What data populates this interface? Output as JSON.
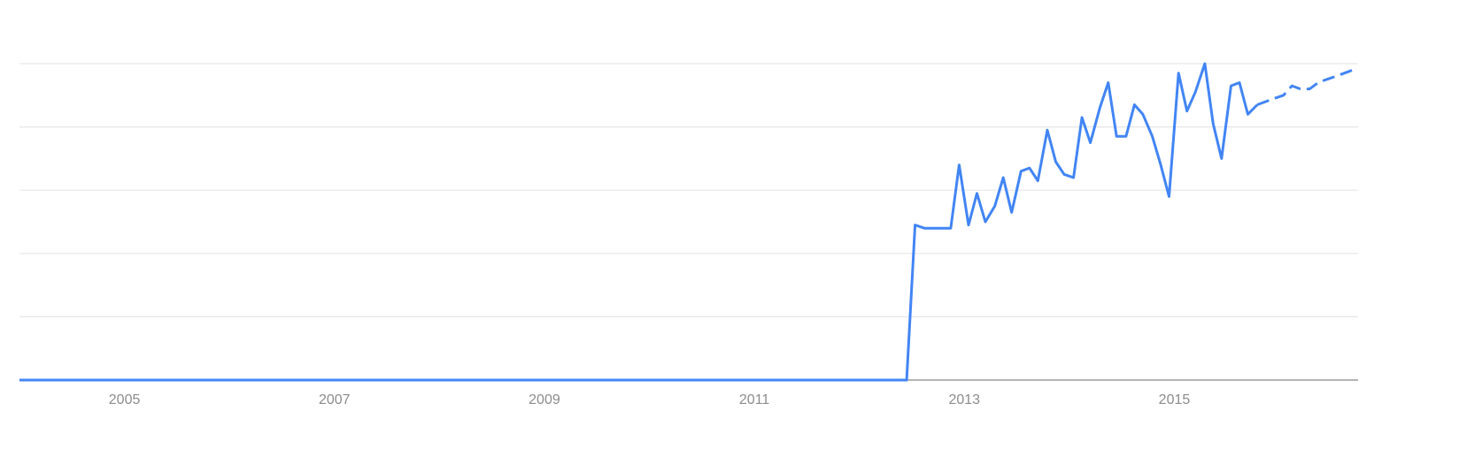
{
  "chart_data": {
    "type": "line",
    "title": "",
    "xlabel": "",
    "ylabel": "",
    "x_range": [
      2004.0,
      2016.75
    ],
    "ylim": [
      0,
      100
    ],
    "y_gridlines": [
      20,
      40,
      60,
      80,
      100
    ],
    "x_ticks": [
      {
        "value": 2005,
        "label": "2005"
      },
      {
        "value": 2007,
        "label": "2007"
      },
      {
        "value": 2009,
        "label": "2009"
      },
      {
        "value": 2011,
        "label": "2011"
      },
      {
        "value": 2013,
        "label": "2013"
      },
      {
        "value": 2015,
        "label": "2015"
      }
    ],
    "colors": {
      "line": "#4285f4",
      "grid": "#e6e6e6",
      "axis": "#888888",
      "tick_label": "#8c8c8c"
    },
    "series": [
      {
        "style": "solid",
        "points": [
          [
            2004.0,
            0
          ],
          [
            2012.45,
            0
          ],
          [
            2012.53,
            49
          ],
          [
            2012.62,
            48
          ],
          [
            2012.7,
            48
          ],
          [
            2012.79,
            48
          ],
          [
            2012.87,
            48
          ],
          [
            2012.95,
            68
          ],
          [
            2013.04,
            49
          ],
          [
            2013.12,
            59
          ],
          [
            2013.2,
            50
          ],
          [
            2013.29,
            55
          ],
          [
            2013.37,
            64
          ],
          [
            2013.45,
            53
          ],
          [
            2013.54,
            66
          ],
          [
            2013.62,
            67
          ],
          [
            2013.7,
            63
          ],
          [
            2013.79,
            79
          ],
          [
            2013.87,
            69
          ],
          [
            2013.95,
            65
          ],
          [
            2014.04,
            64
          ],
          [
            2014.12,
            83
          ],
          [
            2014.2,
            75
          ],
          [
            2014.29,
            86
          ],
          [
            2014.37,
            94
          ],
          [
            2014.45,
            77
          ],
          [
            2014.54,
            77
          ],
          [
            2014.62,
            87
          ],
          [
            2014.7,
            84
          ],
          [
            2014.79,
            77
          ],
          [
            2014.87,
            68
          ],
          [
            2014.95,
            58
          ],
          [
            2015.04,
            97
          ],
          [
            2015.12,
            85
          ],
          [
            2015.2,
            91
          ],
          [
            2015.29,
            100
          ],
          [
            2015.37,
            81
          ],
          [
            2015.45,
            70
          ],
          [
            2015.54,
            93
          ],
          [
            2015.62,
            94
          ],
          [
            2015.7,
            84
          ],
          [
            2015.79,
            87
          ]
        ]
      },
      {
        "style": "dashed",
        "points": [
          [
            2015.79,
            87
          ],
          [
            2015.87,
            88
          ],
          [
            2015.95,
            89
          ],
          [
            2016.04,
            90
          ],
          [
            2016.12,
            93
          ],
          [
            2016.2,
            92
          ],
          [
            2016.29,
            92
          ],
          [
            2016.37,
            94
          ],
          [
            2016.45,
            95
          ],
          [
            2016.54,
            96
          ],
          [
            2016.62,
            97
          ],
          [
            2016.7,
            98
          ]
        ]
      }
    ]
  }
}
